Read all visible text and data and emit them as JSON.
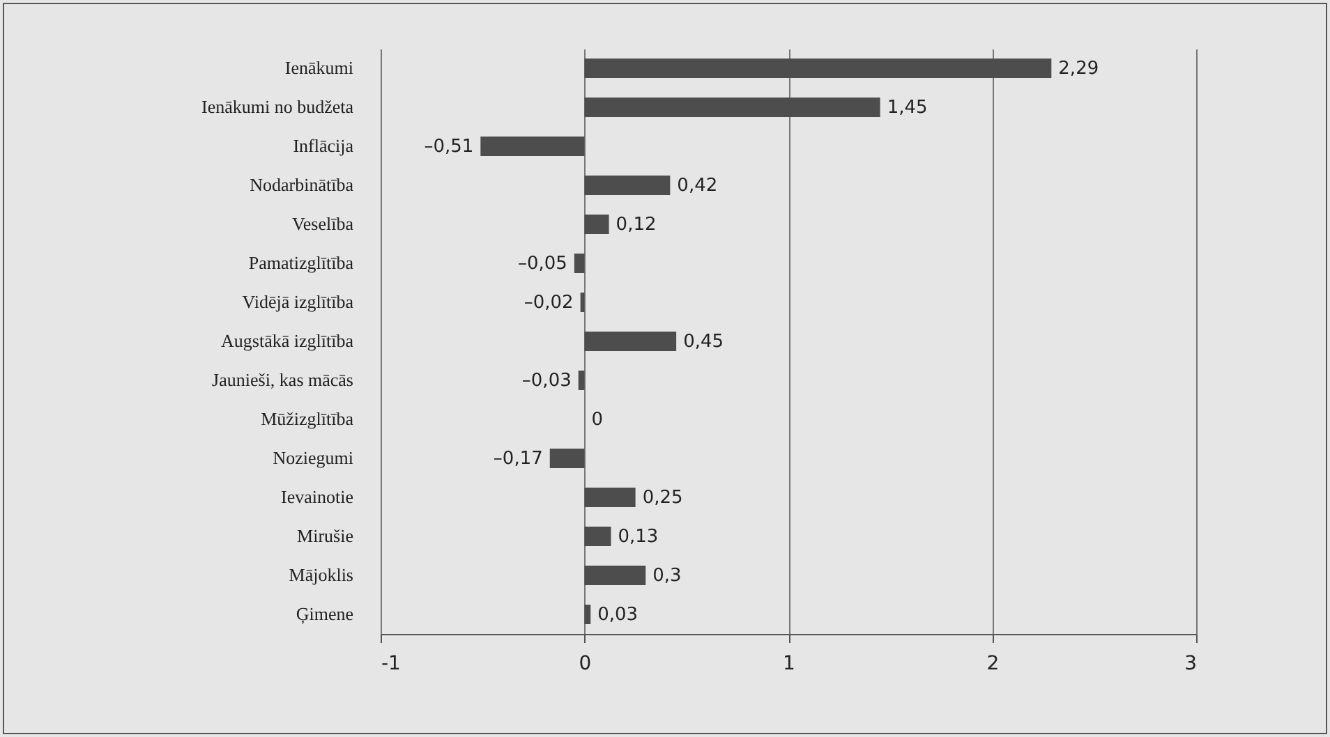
{
  "chart_data": {
    "type": "bar",
    "orientation": "horizontal",
    "categories": [
      "Ienākumi",
      "Ienākumi no budžeta",
      "Inflācija",
      "Nodarbinātība",
      "Veselība",
      "Pamatizglītība",
      "Vidējā izglītība",
      "Augstākā izglītība",
      "Jaunieši, kas mācās",
      "Mūžizglītība",
      "Noziegumi",
      "Ievainotie",
      "Mirušie",
      "Mājoklis",
      "Ģimene"
    ],
    "values": [
      2.29,
      1.45,
      -0.51,
      0.42,
      0.12,
      -0.05,
      -0.02,
      0.45,
      -0.03,
      0,
      -0.17,
      0.25,
      0.13,
      0.3,
      0.03
    ],
    "value_labels": [
      "2,29",
      "1,45",
      "–0,51",
      "0,42",
      "0,12",
      "–0,05",
      "–0,02",
      "0,45",
      "–0,03",
      "0",
      "–0,17",
      "0,25",
      "0,13",
      "0,3",
      "0,03"
    ],
    "color": "#4d4d4d",
    "xlim": [
      -1,
      3
    ],
    "xticks": [
      -1,
      0,
      1,
      2,
      3
    ],
    "grid": "x"
  }
}
